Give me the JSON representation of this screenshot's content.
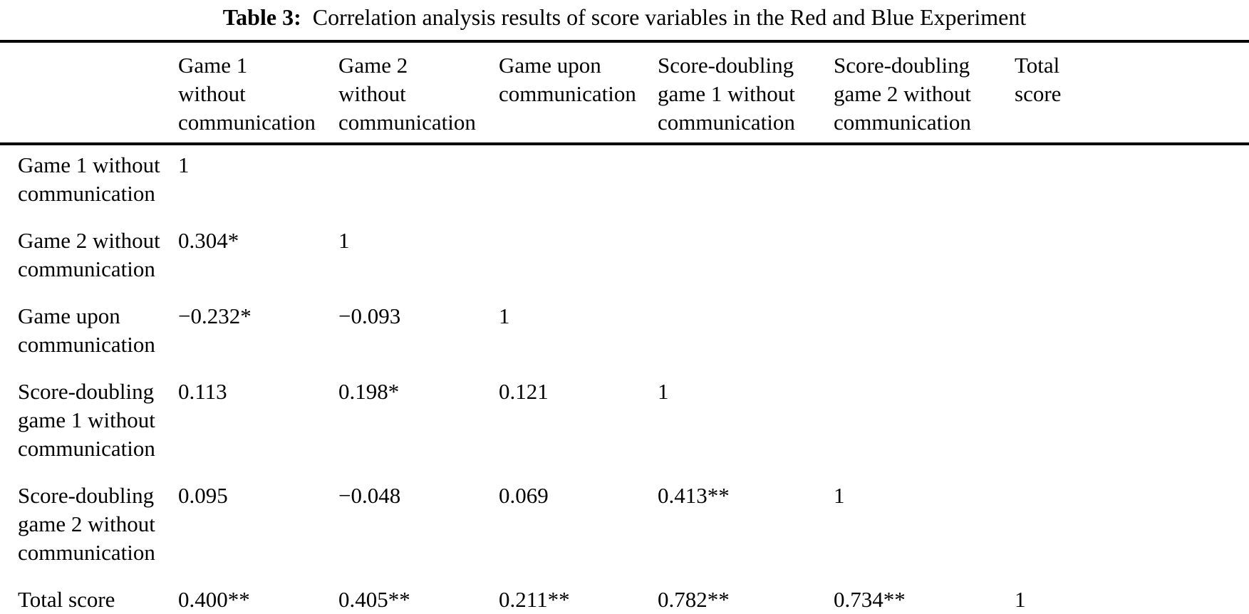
{
  "caption": {
    "label": "Table 3:",
    "text": "Correlation analysis results of score variables in the Red and Blue Experiment"
  },
  "table": {
    "columns": [
      "",
      "Game 1\nwithout\ncommunication",
      "Game 2\nwithout\ncommunication",
      "Game upon\ncommunication",
      "Score-doubling\ngame 1 without\ncommunication",
      "Score-doubling\ngame 2 without\ncommunication",
      "Total\nscore"
    ],
    "rows": [
      {
        "label": "Game 1 without\ncommunication",
        "values": [
          "1",
          "",
          "",
          "",
          "",
          ""
        ]
      },
      {
        "label": "Game 2 without\ncommunication",
        "values": [
          "0.304*",
          "1",
          "",
          "",
          "",
          ""
        ]
      },
      {
        "label": "Game upon\ncommunication",
        "values": [
          "−0.232*",
          "−0.093",
          "1",
          "",
          "",
          ""
        ]
      },
      {
        "label": "Score-doubling\ngame 1 without\ncommunication",
        "values": [
          "0.113",
          "0.198*",
          "0.121",
          "1",
          "",
          ""
        ]
      },
      {
        "label": "Score-doubling\ngame 2 without\ncommunication",
        "values": [
          "0.095",
          "−0.048",
          "0.069",
          "0.413**",
          "1",
          ""
        ]
      },
      {
        "label": "Total score",
        "values": [
          "0.400**",
          "0.405**",
          "0.211**",
          "0.782**",
          "0.734**",
          "1"
        ]
      }
    ]
  }
}
